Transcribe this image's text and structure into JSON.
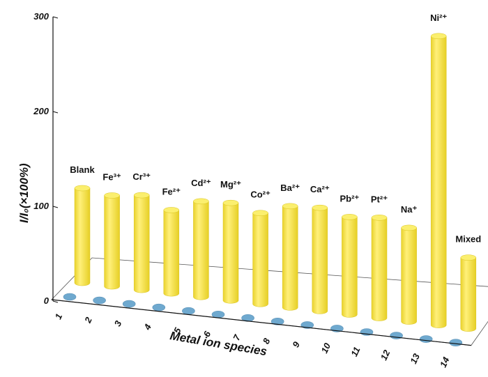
{
  "chart_data": {
    "type": "bar",
    "style": "3d-cylinder",
    "title": "",
    "xlabel": "Metal ion species",
    "ylabel": "I/I₀(×100%)",
    "ylim": [
      0,
      300
    ],
    "yticks": [
      "0",
      "100",
      "200",
      "300"
    ],
    "categories": [
      "1",
      "2",
      "3",
      "4",
      "5",
      "6",
      "7",
      "8",
      "9",
      "10",
      "11",
      "12",
      "13",
      "14"
    ],
    "bar_labels": [
      "Blank",
      "Fe³⁺",
      "Cr³⁺",
      "Fe²⁺",
      "Cd²⁺",
      "Mg²⁺",
      "Co²⁺",
      "Ba²⁺",
      "Ca²⁺",
      "Pb²⁺",
      "Pt²⁺",
      "Na⁺",
      "Ni²⁺",
      "Mixed"
    ],
    "values": [
      100,
      96,
      100,
      88,
      101,
      103,
      96,
      107,
      109,
      103,
      106,
      99,
      305,
      75
    ],
    "grid": false,
    "colors": {
      "bar_side": "#f2dd3a",
      "bar_highlight": "#fff07a",
      "bar_top": "#fbef6e",
      "base_disc": "#6fa9cf",
      "axis": "#111111"
    }
  }
}
